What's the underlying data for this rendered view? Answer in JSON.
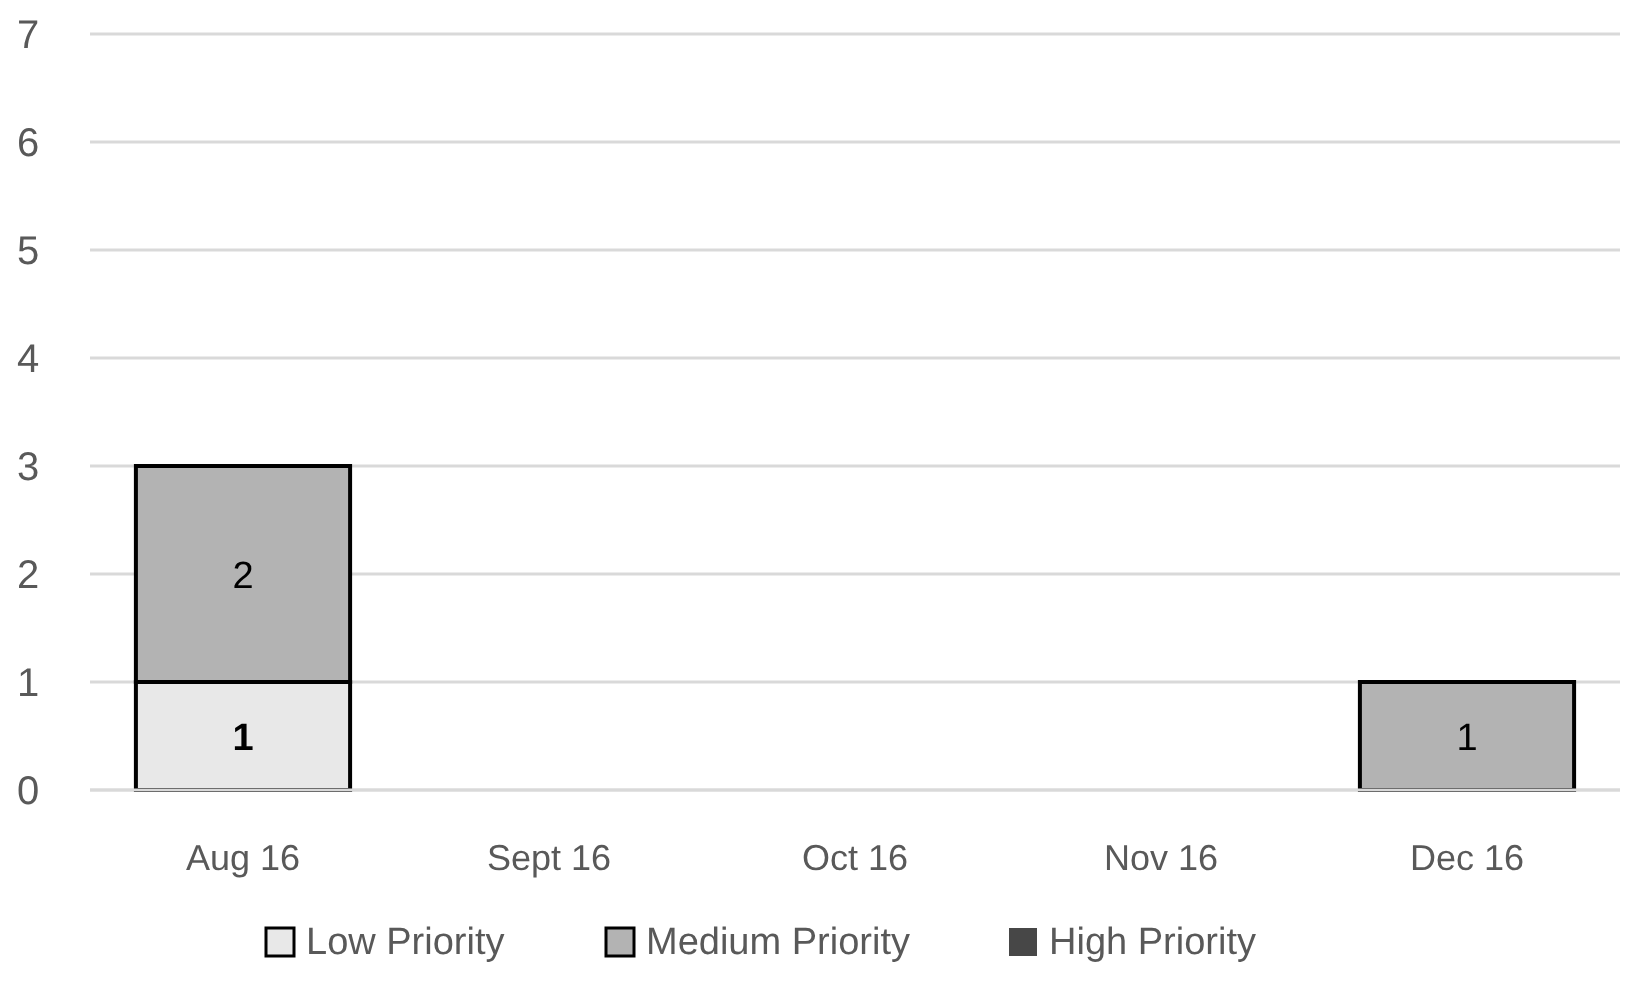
{
  "chart_data": {
    "type": "bar",
    "stacked": true,
    "categories": [
      "Aug 16",
      "Sept 16",
      "Oct 16",
      "Nov 16",
      "Dec 16"
    ],
    "series": [
      {
        "name": "Low Priority",
        "color": "#e8e8e8",
        "values": [
          1,
          0,
          0,
          0,
          0
        ],
        "value_labels": [
          "1",
          null,
          null,
          null,
          null
        ]
      },
      {
        "name": "Medium Priority",
        "color": "#b3b3b3",
        "values": [
          2,
          0,
          0,
          0,
          1
        ],
        "value_labels": [
          "2",
          null,
          null,
          null,
          "1"
        ]
      },
      {
        "name": "High Priority",
        "color": "#474747",
        "values": [
          0,
          0,
          0,
          0,
          0
        ],
        "value_labels": [
          null,
          null,
          null,
          null,
          null
        ]
      }
    ],
    "ylim": [
      0,
      7
    ],
    "yticks": [
      0,
      1,
      2,
      3,
      4,
      5,
      6,
      7
    ],
    "grid": "y",
    "legend": "bottom"
  }
}
